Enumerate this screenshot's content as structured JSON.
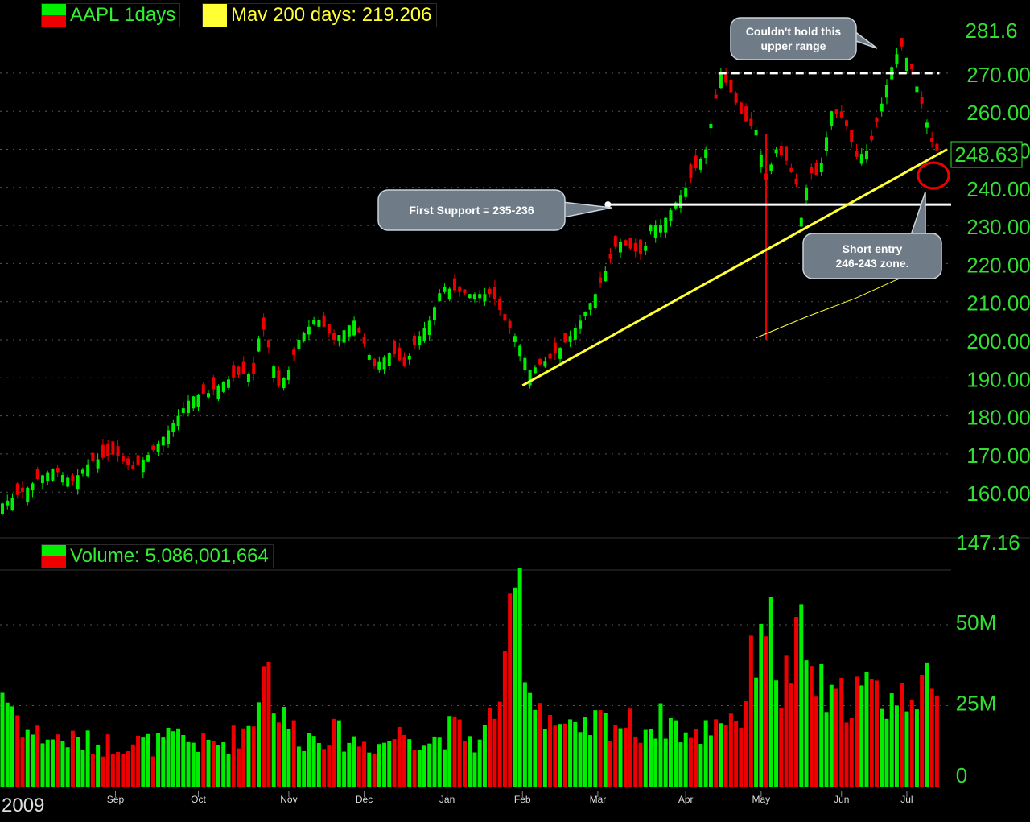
{
  "legend": {
    "symbol": "AAPL 1days",
    "ma": "Mav 200 days: 219.206",
    "volume": "Volume: 5,086,001,664"
  },
  "colors": {
    "up": "#00ee00",
    "down": "#ee0000",
    "ma": "#ffff33",
    "trend": "#ffff33",
    "grid": "#555555",
    "price_label": "#33dd33",
    "background": "#000000"
  },
  "chart_data": {
    "type": "candlestick",
    "symbol": "AAPL",
    "interval": "1 day",
    "x_labels": [
      "2009",
      "Sep",
      "Oct",
      "Nov",
      "Dec",
      "Jan",
      "Feb",
      "Mar",
      "Apr",
      "May",
      "Jun",
      "Jul"
    ],
    "price_axis": {
      "ylim": [
        147.16,
        281.6
      ],
      "ticks": [
        "160.00",
        "170.00",
        "180.00",
        "190.00",
        "200.00",
        "210.00",
        "220.00",
        "230.00",
        "240.00",
        "250.00",
        "260.00",
        "270.00"
      ],
      "top_label": "281.6",
      "bottom_label": "147.16",
      "last_price": "248.63"
    },
    "volume_axis": {
      "ticks": [
        "0",
        "25M",
        "50M"
      ]
    },
    "price_anchors": [
      [
        0,
        157
      ],
      [
        8,
        160
      ],
      [
        15,
        164
      ],
      [
        20,
        166
      ],
      [
        28,
        163
      ],
      [
        35,
        168
      ],
      [
        45,
        170
      ],
      [
        52,
        166
      ],
      [
        60,
        171
      ],
      [
        68,
        178
      ],
      [
        75,
        185
      ],
      [
        82,
        186
      ],
      [
        88,
        189
      ],
      [
        95,
        191
      ],
      [
        100,
        191
      ],
      [
        103,
        205
      ],
      [
        106,
        198
      ],
      [
        110,
        188
      ],
      [
        114,
        192
      ],
      [
        118,
        200
      ],
      [
        125,
        206
      ],
      [
        132,
        200
      ],
      [
        140,
        205
      ],
      [
        148,
        193
      ],
      [
        155,
        197
      ],
      [
        160,
        193
      ],
      [
        165,
        200
      ],
      [
        170,
        205
      ],
      [
        175,
        214
      ],
      [
        185,
        212
      ],
      [
        195,
        212
      ],
      [
        200,
        205
      ],
      [
        205,
        200
      ],
      [
        210,
        192
      ],
      [
        218,
        195
      ],
      [
        225,
        200
      ],
      [
        230,
        205
      ],
      [
        236,
        212
      ],
      [
        240,
        218
      ],
      [
        245,
        226
      ],
      [
        250,
        224
      ],
      [
        255,
        222
      ],
      [
        258,
        230
      ],
      [
        262,
        230
      ],
      [
        268,
        236
      ],
      [
        272,
        240
      ],
      [
        276,
        245
      ],
      [
        280,
        250
      ],
      [
        286,
        270
      ],
      [
        290,
        265
      ],
      [
        295,
        258
      ],
      [
        300,
        255
      ],
      [
        304,
        242
      ],
      [
        308,
        250
      ],
      [
        312,
        247
      ],
      [
        316,
        241
      ],
      [
        318,
        232
      ],
      [
        321,
        244
      ],
      [
        325,
        243
      ],
      [
        330,
        260
      ],
      [
        335,
        258
      ],
      [
        340,
        248
      ],
      [
        345,
        250
      ],
      [
        350,
        262
      ],
      [
        355,
        274
      ],
      [
        358,
        277
      ],
      [
        362,
        271
      ],
      [
        366,
        262
      ],
      [
        370,
        252
      ],
      [
        373,
        248.63
      ]
    ],
    "moving_average_200": {
      "name": "Mav 200 days",
      "last": 219.206,
      "points": [
        [
          300,
          200.5
        ],
        [
          320,
          206
        ],
        [
          340,
          211
        ],
        [
          355,
          215.5
        ],
        [
          365,
          218
        ],
        [
          373,
          219.206
        ]
      ]
    },
    "volume": [
      [
        0,
        30
      ],
      [
        10,
        17
      ],
      [
        20,
        15
      ],
      [
        30,
        14
      ],
      [
        40,
        13
      ],
      [
        50,
        14
      ],
      [
        60,
        13
      ],
      [
        70,
        15
      ],
      [
        80,
        13
      ],
      [
        90,
        14
      ],
      [
        100,
        20
      ],
      [
        104,
        43
      ],
      [
        110,
        22
      ],
      [
        120,
        15
      ],
      [
        130,
        17
      ],
      [
        140,
        14
      ],
      [
        150,
        13
      ],
      [
        160,
        17
      ],
      [
        170,
        14
      ],
      [
        180,
        18
      ],
      [
        190,
        13
      ],
      [
        200,
        33
      ],
      [
        205,
        66
      ],
      [
        210,
        30
      ],
      [
        220,
        20
      ],
      [
        230,
        15
      ],
      [
        236,
        20
      ],
      [
        245,
        20
      ],
      [
        255,
        18
      ],
      [
        265,
        21
      ],
      [
        275,
        14
      ],
      [
        285,
        22
      ],
      [
        295,
        22
      ],
      [
        303,
        60
      ],
      [
        310,
        30
      ],
      [
        318,
        45
      ],
      [
        322,
        35
      ],
      [
        330,
        25
      ],
      [
        340,
        30
      ],
      [
        350,
        28
      ],
      [
        358,
        27
      ],
      [
        365,
        35
      ],
      [
        373,
        21
      ]
    ],
    "annotations": [
      {
        "text": "Couldn't hold this upper range",
        "type": "callout"
      },
      {
        "text": "First Support = 235-236",
        "type": "callout",
        "level": 235.5
      },
      {
        "text": "Short entry 246-243 zone.",
        "type": "callout"
      }
    ],
    "lines": [
      {
        "type": "resistance",
        "style": "dashed",
        "color": "#ffffff",
        "value": 270
      },
      {
        "type": "support",
        "style": "solid",
        "color": "#ffffff",
        "value": 235.5
      },
      {
        "type": "trendline",
        "color": "#ffff33",
        "from": [
          207,
          188
        ],
        "to": [
          376,
          250
        ]
      }
    ]
  }
}
